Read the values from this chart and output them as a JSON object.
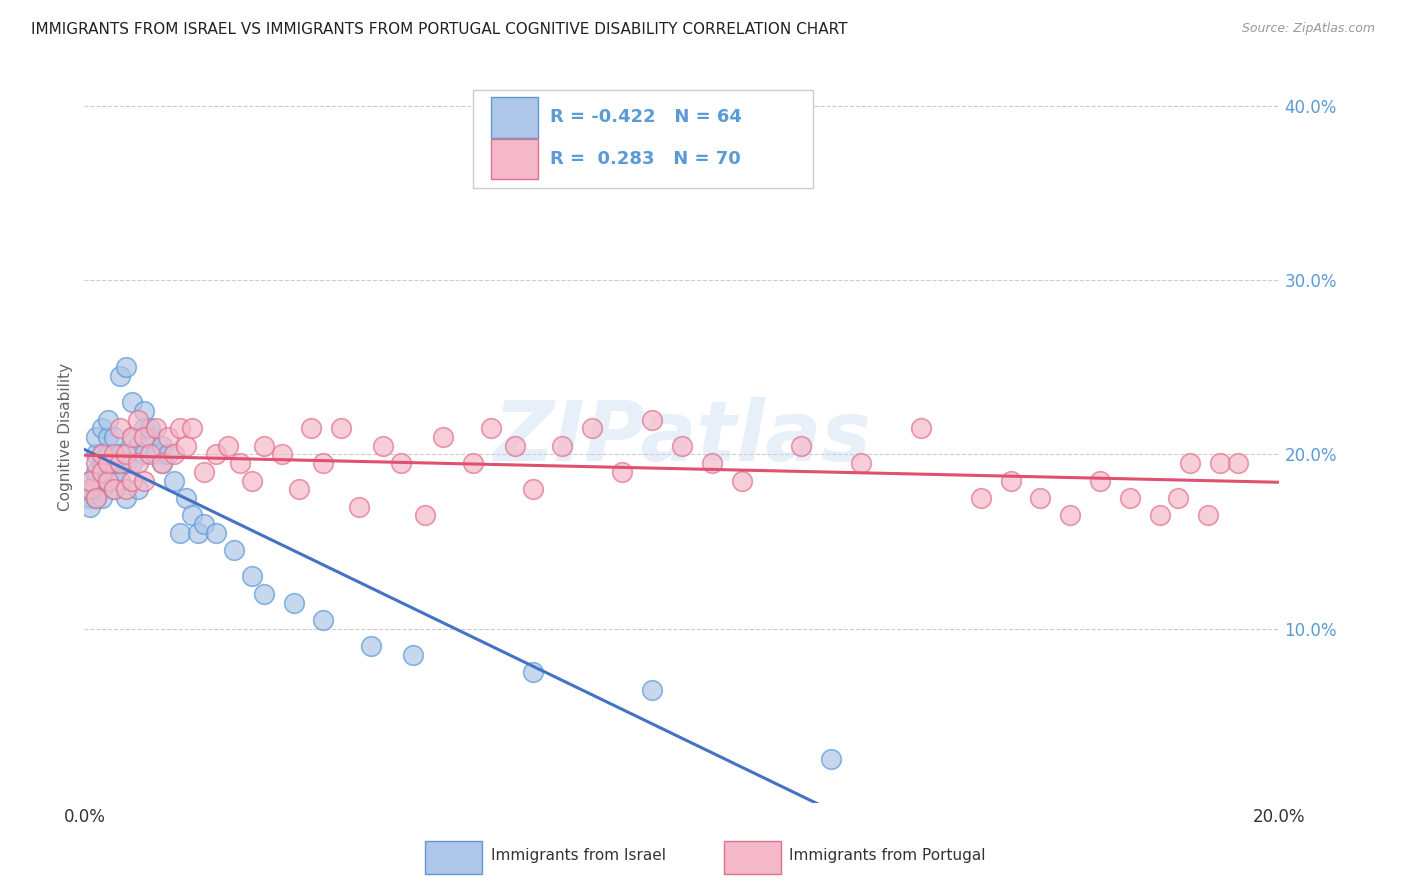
{
  "title": "IMMIGRANTS FROM ISRAEL VS IMMIGRANTS FROM PORTUGAL COGNITIVE DISABILITY CORRELATION CHART",
  "source": "Source: ZipAtlas.com",
  "ylabel": "Cognitive Disability",
  "xmin": 0.0,
  "xmax": 0.2,
  "ymin": 0.0,
  "ymax": 0.42,
  "israel_color": "#aec6e8",
  "israel_edge_color": "#5b9bd5",
  "portugal_color": "#f4b8c8",
  "portugal_edge_color": "#e07090",
  "israel_line_color": "#4472c4",
  "portugal_line_color": "#e05070",
  "legend_R_israel": "-0.422",
  "legend_N_israel": "64",
  "legend_R_portugal": "0.283",
  "legend_N_portugal": "70",
  "watermark": "ZIPatlas",
  "israel_scatter_x": [
    0.001,
    0.001,
    0.001,
    0.001,
    0.002,
    0.002,
    0.002,
    0.002,
    0.002,
    0.002,
    0.003,
    0.003,
    0.003,
    0.003,
    0.003,
    0.003,
    0.003,
    0.004,
    0.004,
    0.004,
    0.004,
    0.004,
    0.005,
    0.005,
    0.005,
    0.005,
    0.006,
    0.006,
    0.006,
    0.006,
    0.007,
    0.007,
    0.007,
    0.008,
    0.008,
    0.008,
    0.009,
    0.009,
    0.01,
    0.01,
    0.01,
    0.011,
    0.011,
    0.012,
    0.013,
    0.013,
    0.014,
    0.015,
    0.016,
    0.017,
    0.018,
    0.019,
    0.02,
    0.022,
    0.025,
    0.028,
    0.03,
    0.035,
    0.04,
    0.048,
    0.055,
    0.075,
    0.095,
    0.125
  ],
  "israel_scatter_y": [
    0.18,
    0.175,
    0.17,
    0.185,
    0.185,
    0.18,
    0.175,
    0.19,
    0.2,
    0.21,
    0.195,
    0.185,
    0.18,
    0.175,
    0.19,
    0.2,
    0.215,
    0.185,
    0.195,
    0.2,
    0.21,
    0.22,
    0.18,
    0.19,
    0.195,
    0.21,
    0.185,
    0.195,
    0.2,
    0.245,
    0.195,
    0.175,
    0.25,
    0.21,
    0.195,
    0.23,
    0.18,
    0.205,
    0.225,
    0.215,
    0.2,
    0.21,
    0.215,
    0.2,
    0.195,
    0.205,
    0.2,
    0.185,
    0.155,
    0.175,
    0.165,
    0.155,
    0.16,
    0.155,
    0.145,
    0.13,
    0.12,
    0.115,
    0.105,
    0.09,
    0.085,
    0.075,
    0.065,
    0.025
  ],
  "portugal_scatter_x": [
    0.001,
    0.001,
    0.002,
    0.002,
    0.003,
    0.003,
    0.004,
    0.004,
    0.005,
    0.005,
    0.006,
    0.006,
    0.007,
    0.007,
    0.008,
    0.008,
    0.009,
    0.009,
    0.01,
    0.01,
    0.011,
    0.012,
    0.013,
    0.014,
    0.015,
    0.016,
    0.017,
    0.018,
    0.02,
    0.022,
    0.024,
    0.026,
    0.028,
    0.03,
    0.033,
    0.036,
    0.038,
    0.04,
    0.043,
    0.046,
    0.05,
    0.053,
    0.057,
    0.06,
    0.065,
    0.068,
    0.072,
    0.075,
    0.08,
    0.085,
    0.09,
    0.095,
    0.1,
    0.105,
    0.11,
    0.12,
    0.13,
    0.14,
    0.15,
    0.155,
    0.16,
    0.165,
    0.17,
    0.175,
    0.18,
    0.183,
    0.185,
    0.188,
    0.19,
    0.193
  ],
  "portugal_scatter_y": [
    0.18,
    0.185,
    0.195,
    0.175,
    0.19,
    0.2,
    0.185,
    0.195,
    0.18,
    0.2,
    0.195,
    0.215,
    0.18,
    0.2,
    0.185,
    0.21,
    0.195,
    0.22,
    0.185,
    0.21,
    0.2,
    0.215,
    0.195,
    0.21,
    0.2,
    0.215,
    0.205,
    0.215,
    0.19,
    0.2,
    0.205,
    0.195,
    0.185,
    0.205,
    0.2,
    0.18,
    0.215,
    0.195,
    0.215,
    0.17,
    0.205,
    0.195,
    0.165,
    0.21,
    0.195,
    0.215,
    0.205,
    0.18,
    0.205,
    0.215,
    0.19,
    0.22,
    0.205,
    0.195,
    0.185,
    0.205,
    0.195,
    0.215,
    0.175,
    0.185,
    0.175,
    0.165,
    0.185,
    0.175,
    0.165,
    0.175,
    0.195,
    0.165,
    0.195,
    0.195
  ],
  "bg_color": "#ffffff",
  "grid_color": "#cccccc",
  "title_color": "#222222",
  "right_axis_color": "#5b9bd5"
}
